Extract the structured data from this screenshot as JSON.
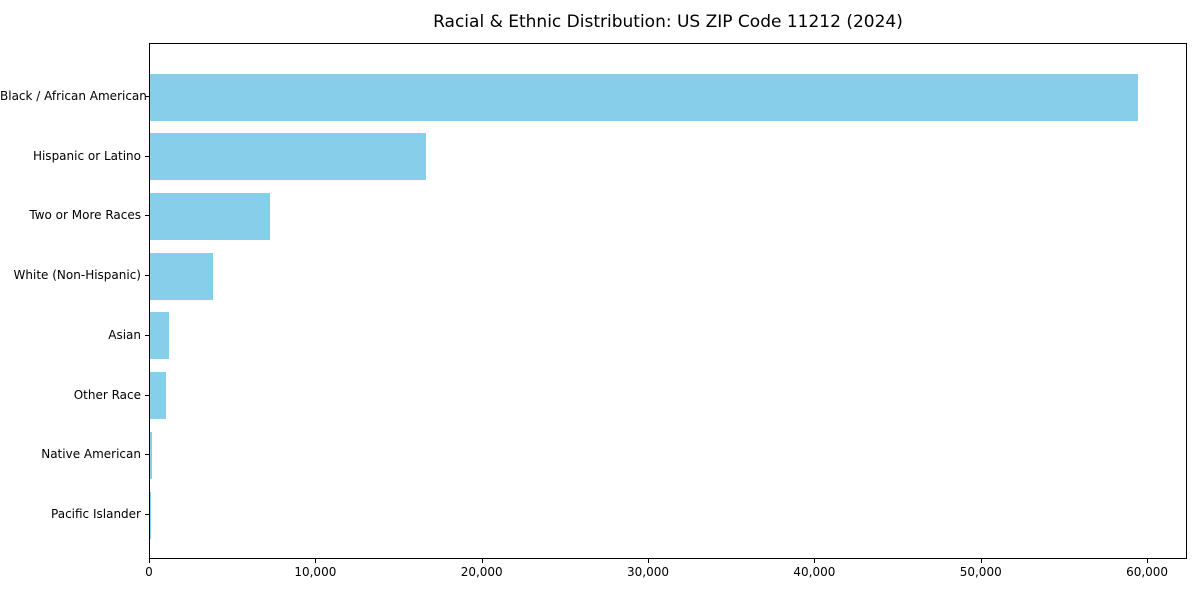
{
  "figure": {
    "background": "#ffffff"
  },
  "chart_data": {
    "type": "bar",
    "orientation": "horizontal",
    "title": "Racial & Ethnic Distribution: US ZIP Code 11212 (2024)",
    "categories": [
      "Black / African American",
      "Hispanic or Latino",
      "Two or More Races",
      "White (Non-Hispanic)",
      "Asian",
      "Other Race",
      "Native American",
      "Pacific Islander"
    ],
    "values": [
      59400,
      16600,
      7200,
      3800,
      1150,
      950,
      150,
      60
    ],
    "xlabel": "",
    "ylabel": "",
    "xlim": [
      0,
      62400
    ],
    "x_ticks": [
      0,
      10000,
      20000,
      30000,
      40000,
      50000,
      60000
    ],
    "x_tick_labels": [
      "0",
      "10,000",
      "20,000",
      "30,000",
      "40,000",
      "50,000",
      "60,000"
    ],
    "bar_color": "#87CEEB",
    "grid": false,
    "legend": null
  }
}
